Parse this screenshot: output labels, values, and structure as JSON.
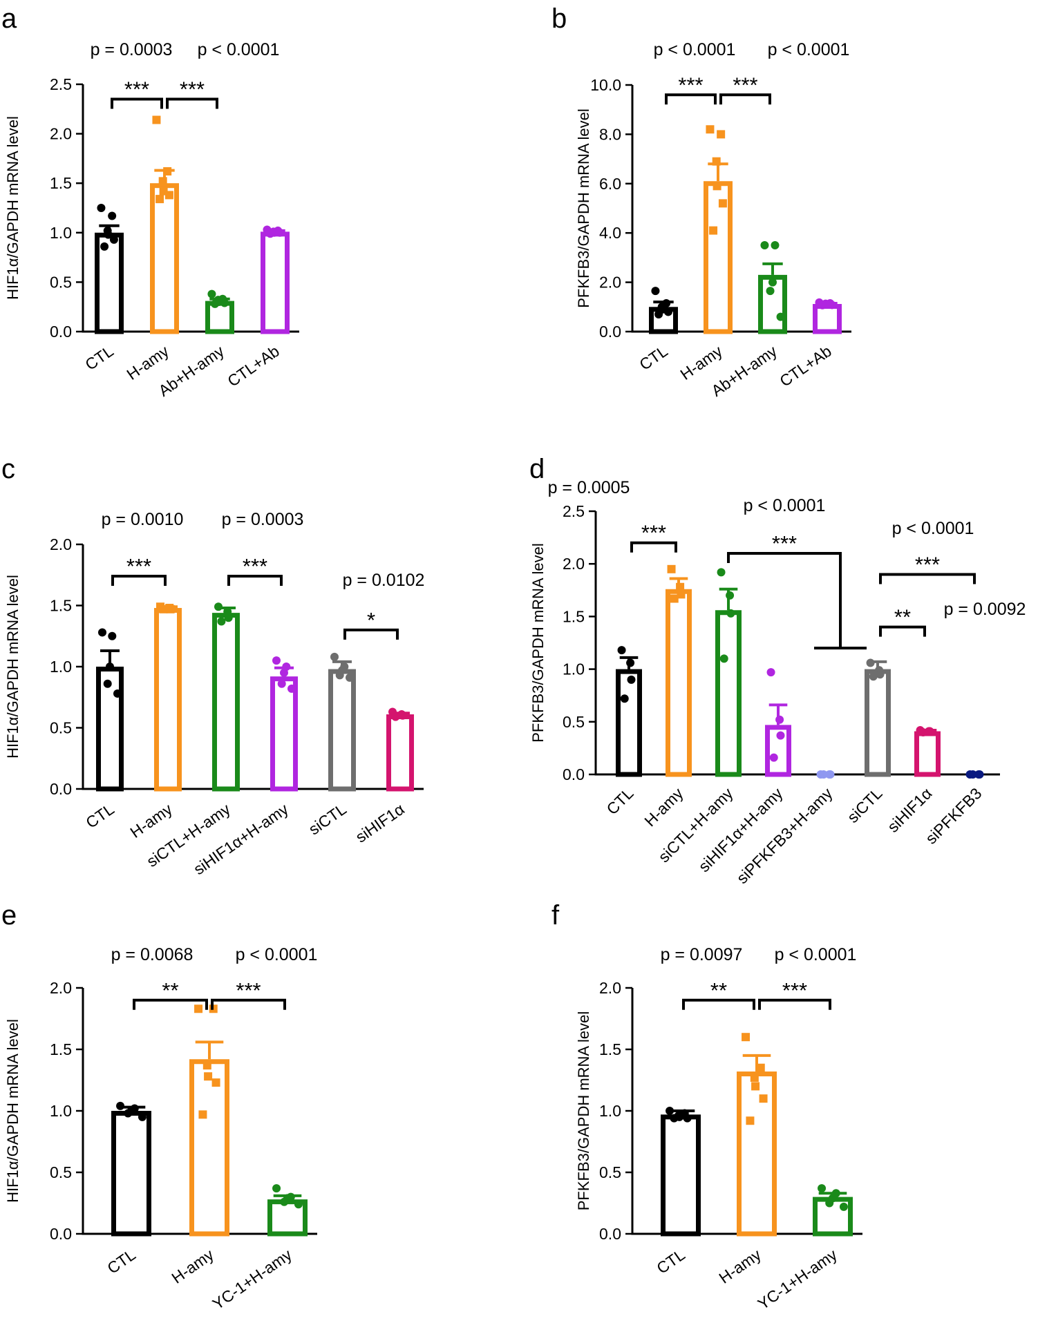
{
  "chart_data": [
    {
      "panel": "a",
      "type": "bar",
      "ylabel": "HIF1α/GAPDH mRNA level",
      "ylim": [
        0,
        2.5
      ],
      "ticks": [
        "0.0",
        "0.5",
        "1.0",
        "1.5",
        "2.0",
        "2.5"
      ],
      "tick_values": [
        0,
        0.5,
        1.0,
        1.5,
        2.0,
        2.5
      ],
      "categories": [
        "CTL",
        "H-amy",
        "Ab+H-amy",
        "CTL+Ab"
      ],
      "values": [
        1.0,
        1.5,
        0.31,
        1.01
      ],
      "errors": [
        0.07,
        0.13,
        0.02,
        0.01
      ],
      "colors": [
        "#000000",
        "#f7931e",
        "#1a8a1a",
        "#b026e0"
      ],
      "markers": [
        "circle",
        "square",
        "circle",
        "circle"
      ],
      "points": [
        [
          1.25,
          1.17,
          1.02,
          0.98,
          0.93,
          0.86
        ],
        [
          2.14,
          1.62,
          1.52,
          1.42,
          1.38,
          1.34
        ],
        [
          0.38,
          0.33,
          0.32,
          0.3,
          0.29,
          0.28
        ],
        [
          1.03,
          1.02,
          1.01,
          1.0,
          1.0,
          0.99
        ]
      ],
      "comparisons": [
        {
          "from": 0,
          "to": 1,
          "stars": "***",
          "p": "p = 0.0003",
          "bracket_y": 2.35,
          "p_pos": "left"
        },
        {
          "from": 1,
          "to": 2,
          "stars": "***",
          "p": "p < 0.0001",
          "bracket_y": 2.35,
          "p_pos": "right"
        }
      ]
    },
    {
      "panel": "b",
      "type": "bar",
      "ylabel": "PFKFB3/GAPDH mRNA level",
      "ylim": [
        0,
        10
      ],
      "ticks": [
        "0.0",
        "2.0",
        "4.0",
        "6.0",
        "8.0",
        "10.0"
      ],
      "tick_values": [
        0,
        2,
        4,
        6,
        8,
        10
      ],
      "categories": [
        "CTL",
        "H-amy",
        "Ab+H-amy",
        "CTL+Ab"
      ],
      "values": [
        1.0,
        6.1,
        2.3,
        1.12
      ],
      "errors": [
        0.2,
        0.7,
        0.45,
        0.03
      ],
      "colors": [
        "#000000",
        "#f7931e",
        "#1a8a1a",
        "#b026e0"
      ],
      "markers": [
        "circle",
        "square",
        "circle",
        "circle"
      ],
      "points": [
        [
          1.65,
          1.15,
          1.0,
          0.9,
          0.8,
          0.7
        ],
        [
          8.2,
          8.0,
          6.9,
          5.9,
          5.2,
          4.1
        ],
        [
          3.5,
          3.5,
          2.0,
          1.65,
          0.6
        ],
        [
          1.18,
          1.15,
          1.13,
          1.1,
          1.08,
          1.07
        ]
      ],
      "comparisons": [
        {
          "from": 0,
          "to": 1,
          "stars": "***",
          "p": "p < 0.0001",
          "bracket_y": 9.6,
          "p_pos": "left"
        },
        {
          "from": 1,
          "to": 2,
          "stars": "***",
          "p": "p < 0.0001",
          "bracket_y": 9.6,
          "p_pos": "right"
        }
      ]
    },
    {
      "panel": "c",
      "type": "bar",
      "ylabel": "HIF1α/GAPDH mRNA level",
      "ylim": [
        0,
        2.0
      ],
      "ticks": [
        "0.0",
        "0.5",
        "1.0",
        "1.5",
        "2.0"
      ],
      "tick_values": [
        0,
        0.5,
        1.0,
        1.5,
        2.0
      ],
      "categories": [
        "CTL",
        "H-amy",
        "siCTL+H-amy",
        "siHIF1α+H-amy",
        "siCTL",
        "siHIF1α"
      ],
      "values": [
        1.0,
        1.48,
        1.44,
        0.92,
        0.98,
        0.61
      ],
      "errors": [
        0.13,
        0.01,
        0.04,
        0.07,
        0.06,
        0.01
      ],
      "colors": [
        "#000000",
        "#f7931e",
        "#1a8a1a",
        "#b026e0",
        "#6e6e6e",
        "#d4146e"
      ],
      "markers": [
        "circle",
        "square",
        "circle",
        "circle",
        "circle",
        "circle"
      ],
      "points": [
        [
          1.28,
          1.25,
          1.0,
          0.86,
          0.78
        ],
        [
          1.49,
          1.48,
          1.47,
          1.47
        ],
        [
          1.49,
          1.45,
          1.4,
          1.37
        ],
        [
          1.05,
          1.0,
          0.95,
          0.86,
          0.82
        ],
        [
          1.08,
          1.0,
          0.97,
          0.93,
          0.91
        ],
        [
          0.63,
          0.61,
          0.6,
          0.59
        ]
      ],
      "comparisons": [
        {
          "from": 0,
          "to": 1,
          "stars": "***",
          "p": "p = 0.0010",
          "bracket_y": 1.74
        },
        {
          "from": 2,
          "to": 3,
          "stars": "***",
          "p": "p = 0.0003",
          "bracket_y": 1.74
        },
        {
          "from": 4,
          "to": 5,
          "stars": "*",
          "p": "p = 0.0102",
          "bracket_y": 1.3
        }
      ]
    },
    {
      "panel": "d",
      "type": "bar",
      "ylabel": "PFKFB3/GAPDH mRNA level",
      "ylim": [
        0,
        2.5
      ],
      "ticks": [
        "0.0",
        "0.5",
        "1.0",
        "1.5",
        "2.0",
        "2.5"
      ],
      "tick_values": [
        0,
        0.5,
        1.0,
        1.5,
        2.0,
        2.5
      ],
      "categories": [
        "CTL",
        "H-amy",
        "siCTL+H-amy",
        "siHIF1α+H-amy",
        "siPFKFB3+H-amy",
        "siCTL",
        "siHIF1α",
        "siPFKFB3"
      ],
      "values": [
        1.0,
        1.76,
        1.56,
        0.47,
        0.0,
        1.0,
        0.41,
        0.0
      ],
      "errors": [
        0.11,
        0.1,
        0.2,
        0.19,
        0.0,
        0.07,
        0.01,
        0.0
      ],
      "colors": [
        "#000000",
        "#f7931e",
        "#1a8a1a",
        "#b026e0",
        "#8f98f0",
        "#6e6e6e",
        "#d4146e",
        "#0a1a80"
      ],
      "markers": [
        "circle",
        "square",
        "circle",
        "circle",
        "circle",
        "circle",
        "circle",
        "circle"
      ],
      "points": [
        [
          1.18,
          1.06,
          0.9,
          0.72
        ],
        [
          1.95,
          1.78,
          1.71,
          1.67
        ],
        [
          1.92,
          1.7,
          1.53,
          1.1
        ],
        [
          0.97,
          0.52,
          0.37,
          0.16
        ],
        [
          0,
          0,
          0,
          0
        ],
        [
          1.06,
          0.99,
          0.95,
          0.93
        ],
        [
          0.42,
          0.41,
          0.41,
          0.4
        ],
        [
          0,
          0,
          0,
          0
        ]
      ],
      "comparisons": [
        {
          "from": 0,
          "to": 1,
          "stars": "***",
          "p": "p = 0.0005",
          "bracket_y": 2.2
        },
        {
          "from": 2,
          "to": 4,
          "stars": "***",
          "p": "p < 0.0001",
          "bracket_y": 2.1,
          "special": "t"
        },
        {
          "from": 5,
          "to": 7,
          "stars": "***",
          "p": "p < 0.0001",
          "bracket_y": 1.9
        },
        {
          "from": 5,
          "to": 6,
          "stars": "**",
          "p": "p = 0.0092",
          "bracket_y": 1.4
        }
      ]
    },
    {
      "panel": "e",
      "type": "bar",
      "ylabel": "HIF1α/GAPDH mRNA level",
      "ylim": [
        0,
        2.0
      ],
      "ticks": [
        "0.0",
        "0.5",
        "1.0",
        "1.5",
        "2.0"
      ],
      "tick_values": [
        0,
        0.5,
        1.0,
        1.5,
        2.0
      ],
      "categories": [
        "CTL",
        "H-amy",
        "YC-1+H-amy"
      ],
      "values": [
        1.0,
        1.42,
        0.28
      ],
      "errors": [
        0.03,
        0.14,
        0.03
      ],
      "colors": [
        "#000000",
        "#f7931e",
        "#1a8a1a"
      ],
      "markers": [
        "circle",
        "square",
        "circle"
      ],
      "points": [
        [
          1.04,
          1.02,
          1.0,
          0.98,
          0.95
        ],
        [
          1.83,
          1.83,
          1.37,
          1.28,
          1.23,
          0.97
        ],
        [
          0.37,
          0.3,
          0.29,
          0.26,
          0.24
        ]
      ],
      "comparisons": [
        {
          "from": 0,
          "to": 1,
          "stars": "**",
          "p": "p = 0.0068",
          "bracket_y": 1.9,
          "p_pos": "left"
        },
        {
          "from": 1,
          "to": 2,
          "stars": "***",
          "p": "p < 0.0001",
          "bracket_y": 1.9,
          "p_pos": "right"
        }
      ]
    },
    {
      "panel": "f",
      "type": "bar",
      "ylabel": "PFKFB3/GAPDH mRNA level",
      "ylim": [
        0,
        2.0
      ],
      "ticks": [
        "0.0",
        "0.5",
        "1.0",
        "1.5",
        "2.0"
      ],
      "tick_values": [
        0,
        0.5,
        1.0,
        1.5,
        2.0
      ],
      "categories": [
        "CTL",
        "H-amy",
        "YC-1+H-amy"
      ],
      "values": [
        0.97,
        1.32,
        0.3
      ],
      "errors": [
        0.03,
        0.13,
        0.03
      ],
      "colors": [
        "#000000",
        "#f7931e",
        "#1a8a1a"
      ],
      "markers": [
        "circle",
        "square",
        "circle"
      ],
      "points": [
        [
          1.0,
          0.98,
          0.96,
          0.95,
          0.94,
          0.94
        ],
        [
          1.6,
          1.35,
          1.27,
          1.2,
          1.1,
          0.92
        ],
        [
          0.37,
          0.33,
          0.29,
          0.25,
          0.22
        ]
      ],
      "comparisons": [
        {
          "from": 0,
          "to": 1,
          "stars": "**",
          "p": "p = 0.0097",
          "bracket_y": 1.9,
          "p_pos": "left"
        },
        {
          "from": 1,
          "to": 2,
          "stars": "***",
          "p": "p < 0.0001",
          "bracket_y": 1.9,
          "p_pos": "right"
        }
      ]
    }
  ]
}
